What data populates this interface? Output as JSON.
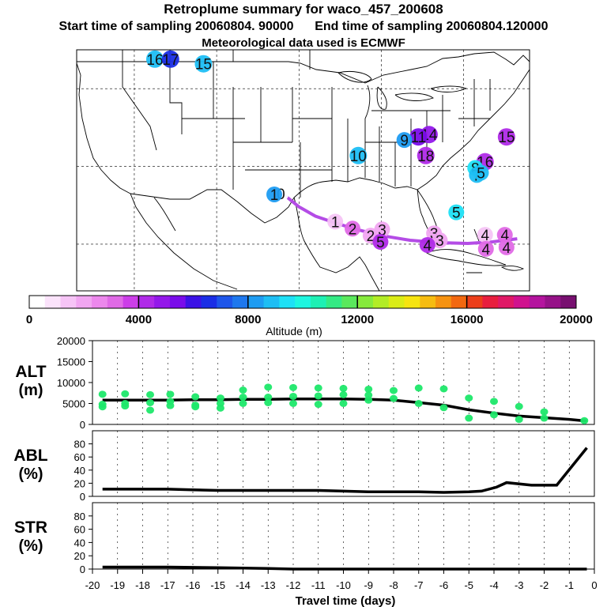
{
  "header": {
    "title": "Retroplume summary for waco_457_200608",
    "start_label": "Start time of sampling 20060804. 90000",
    "end_label": "End time of sampling 20060804.120000",
    "met_label": "Meteorological data used is ECMWF"
  },
  "colorbar": {
    "ticks": [
      "0",
      "4000",
      "8000",
      "12000",
      "16000",
      "20000"
    ],
    "label": "Altitude (m)",
    "range": [
      0,
      20000
    ],
    "colors": [
      "#ffffff",
      "#fbe3fb",
      "#f6c4f6",
      "#f1a6f1",
      "#ec88ec",
      "#e06ae6",
      "#cc3ee8",
      "#b02ae8",
      "#9418ea",
      "#7a0cea",
      "#3c12e6",
      "#1a2ee6",
      "#1e56ea",
      "#1e78ee",
      "#1e9cf2",
      "#1ebef4",
      "#1ee0f6",
      "#1ef6e0",
      "#1ef0b4",
      "#34ea84",
      "#5ae85c",
      "#86ea3c",
      "#b2ec26",
      "#daec16",
      "#f6e410",
      "#f6bc10",
      "#f69210",
      "#f26810",
      "#ec3e1a",
      "#e81e3e",
      "#e01866",
      "#d0128e",
      "#b4149e",
      "#961288",
      "#781070"
    ]
  },
  "map": {
    "markers": [
      {
        "label": "16",
        "lon": -112.5,
        "lat": 48.8,
        "alt": 9000
      },
      {
        "label": "17",
        "lon": -110.6,
        "lat": 48.8,
        "alt": 6500
      },
      {
        "label": "15",
        "lon": -106.6,
        "lat": 48.2,
        "alt": 8800
      },
      {
        "label": "14",
        "lon": -79.2,
        "lat": 39.1,
        "alt": 5000
      },
      {
        "label": "11",
        "lon": -80.5,
        "lat": 38.8,
        "alt": 5200
      },
      {
        "label": "9",
        "lon": -82.2,
        "lat": 38.4,
        "alt": 8500
      },
      {
        "label": "15",
        "lon": -69.8,
        "lat": 38.8,
        "alt": 4200
      },
      {
        "label": "10",
        "lon": -87.8,
        "lat": 36.4,
        "alt": 9000
      },
      {
        "label": "18",
        "lon": -79.6,
        "lat": 36.4,
        "alt": 4000
      },
      {
        "label": "16",
        "lon": -72.4,
        "lat": 35.6,
        "alt": 4500
      },
      {
        "label": "8",
        "lon": -73.6,
        "lat": 34.8,
        "alt": 9500
      },
      {
        "label": "7",
        "lon": -73.4,
        "lat": 33.9,
        "alt": 9000
      },
      {
        "label": "5",
        "lon": -72.9,
        "lat": 34.2,
        "alt": 8700
      },
      {
        "label": "0",
        "lon": -97.2,
        "lat": 31.5,
        "alt": 500
      },
      {
        "label": "1",
        "lon": -98.0,
        "lat": 31.4,
        "alt": 8000
      },
      {
        "label": "1",
        "lon": -90.6,
        "lat": 27.9,
        "alt": 1500
      },
      {
        "label": "2",
        "lon": -88.5,
        "lat": 27.0,
        "alt": 3000
      },
      {
        "label": "3",
        "lon": -84.9,
        "lat": 26.9,
        "alt": 2000
      },
      {
        "label": "2",
        "lon": -86.3,
        "lat": 26.1,
        "alt": 1800
      },
      {
        "label": "5",
        "lon": -85.1,
        "lat": 25.3,
        "alt": 4200
      },
      {
        "label": "5",
        "lon": -75.9,
        "lat": 29.1,
        "alt": 9200
      },
      {
        "label": "3",
        "lon": -78.6,
        "lat": 26.4,
        "alt": 2000
      },
      {
        "label": "3",
        "lon": -77.9,
        "lat": 25.5,
        "alt": 2000
      },
      {
        "label": "4",
        "lon": -79.4,
        "lat": 24.9,
        "alt": 4200
      },
      {
        "label": "4",
        "lon": -72.4,
        "lat": 26.2,
        "alt": 1700
      },
      {
        "label": "4",
        "lon": -70.0,
        "lat": 26.2,
        "alt": 3000
      },
      {
        "label": "4",
        "lon": -72.3,
        "lat": 24.4,
        "alt": 3000
      },
      {
        "label": "4",
        "lon": -69.8,
        "lat": 24.6,
        "alt": 3000
      }
    ],
    "track": [
      [
        -97.1,
        31.6
      ],
      [
        -95,
        29.8
      ],
      [
        -93,
        28.6
      ],
      [
        -90.5,
        27.7
      ],
      [
        -88,
        26.9
      ],
      [
        -85,
        26.1
      ],
      [
        -81.5,
        25.5
      ],
      [
        -78,
        25.2
      ],
      [
        -74.5,
        25.1
      ],
      [
        -71.5,
        25.3
      ],
      [
        -68.5,
        25.7
      ]
    ]
  },
  "panels": {
    "alt": {
      "label1": "ALT",
      "label2": "(m)",
      "ylim": [
        0,
        20000
      ],
      "yticks": [
        "0",
        "5000",
        "10000",
        "15000",
        "20000"
      ]
    },
    "abl": {
      "label1": "ABL",
      "label2": "(%)",
      "ylim": [
        0,
        100
      ],
      "yticks": [
        "0",
        "20",
        "40",
        "60",
        "80"
      ]
    },
    "str": {
      "label1": "STR",
      "label2": "(%)",
      "ylim": [
        0,
        100
      ],
      "yticks": [
        "0",
        "20",
        "40",
        "60",
        "80"
      ]
    }
  },
  "xaxis": {
    "ticks": [
      "-20",
      "-19",
      "-18",
      "-17",
      "-16",
      "-15",
      "-14",
      "-13",
      "-12",
      "-11",
      "-10",
      "-9",
      "-8",
      "-7",
      "-6",
      "-5",
      "-4",
      "-3",
      "-2",
      "-1",
      "0"
    ],
    "label": "Travel time (days)",
    "xlim": [
      -20,
      0
    ]
  },
  "chart_data": [
    {
      "type": "line",
      "title": "ALT",
      "xlabel": "Travel time (days)",
      "ylabel": "ALT (m)",
      "xlim": [
        -20,
        0
      ],
      "ylim": [
        0,
        20000
      ],
      "series": [
        {
          "name": "mean altitude",
          "x": [
            -19.6,
            -19,
            -18,
            -17,
            -16,
            -15,
            -14,
            -13,
            -12,
            -11,
            -10,
            -9,
            -8,
            -7,
            -6,
            -5,
            -4,
            -3,
            -2,
            -1,
            -0.3
          ],
          "y": [
            5800,
            5800,
            5800,
            5800,
            5900,
            5900,
            6000,
            6000,
            6100,
            6100,
            6100,
            6000,
            5800,
            5200,
            4600,
            3500,
            2700,
            2000,
            1600,
            1200,
            800
          ]
        },
        {
          "name": "particle altitudes",
          "x": [
            -19.6,
            -19.6,
            -19.6,
            -18.7,
            -18.7,
            -18.7,
            -17.7,
            -17.7,
            -17.7,
            -16.9,
            -16.9,
            -16.9,
            -15.9,
            -15.9,
            -15.9,
            -14.9,
            -14.9,
            -14.9,
            -14,
            -14,
            -14,
            -13,
            -13,
            -13,
            -12,
            -12,
            -12,
            -11,
            -11,
            -11,
            -10,
            -10,
            -10,
            -9,
            -9,
            -9,
            -8,
            -8,
            -7,
            -7,
            -6,
            -6,
            -5,
            -5,
            -4,
            -4,
            -3,
            -3,
            -2,
            -2,
            -0.4
          ],
          "y": [
            7200,
            4800,
            4200,
            7300,
            5000,
            4400,
            7100,
            5200,
            3400,
            7200,
            5500,
            4500,
            6600,
            4600,
            4200,
            6300,
            5000,
            3900,
            8200,
            6500,
            5000,
            8900,
            6500,
            5200,
            8800,
            6700,
            5000,
            8700,
            6800,
            4800,
            8600,
            7100,
            5000,
            8400,
            7000,
            5800,
            8100,
            6200,
            8700,
            5000,
            8500,
            4000,
            6300,
            1500,
            5500,
            2300,
            4300,
            1200,
            3000,
            1500,
            900
          ]
        }
      ]
    },
    {
      "type": "line",
      "title": "ABL",
      "xlabel": "Travel time (days)",
      "ylabel": "ABL (%)",
      "xlim": [
        -20,
        0
      ],
      "ylim": [
        0,
        100
      ],
      "series": [
        {
          "name": "ABL fraction",
          "x": [
            -19.6,
            -18,
            -17,
            -16,
            -15,
            -14,
            -13,
            -12,
            -11,
            -10,
            -9,
            -8,
            -7,
            -6,
            -5,
            -4.5,
            -3.9,
            -3.5,
            -2.5,
            -1.5,
            -0.3
          ],
          "y": [
            11,
            11,
            11,
            10,
            9,
            9,
            9,
            9,
            9,
            8,
            7,
            7,
            7,
            6,
            7,
            8,
            14,
            21,
            17,
            17,
            74
          ]
        }
      ]
    },
    {
      "type": "line",
      "title": "STR",
      "xlabel": "Travel time (days)",
      "ylabel": "STR (%)",
      "xlim": [
        -20,
        0
      ],
      "ylim": [
        0,
        100
      ],
      "series": [
        {
          "name": "STR fraction",
          "x": [
            -19.6,
            -17,
            -15,
            -13,
            -12,
            -10,
            -5,
            -0.3
          ],
          "y": [
            3,
            3,
            2,
            1,
            0,
            0,
            0,
            0
          ]
        }
      ]
    }
  ]
}
